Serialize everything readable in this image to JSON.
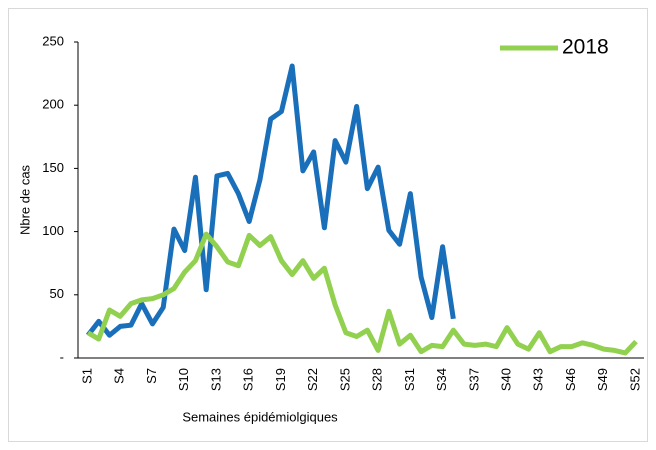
{
  "chart_data": {
    "type": "line",
    "x_label": "Semaines épidémiolgiques",
    "y_label": "Nbre de cas",
    "categories": [
      "S1",
      null,
      null,
      "S4",
      null,
      null,
      "S7",
      null,
      null,
      "S10",
      null,
      null,
      "S13",
      null,
      null,
      "S16",
      null,
      null,
      "S19",
      null,
      null,
      "S22",
      null,
      null,
      "S25",
      null,
      null,
      "S28",
      null,
      null,
      "S31",
      null,
      null,
      "S34",
      null,
      null,
      "S37",
      null,
      null,
      "S40",
      null,
      null,
      "S43",
      null,
      null,
      "S46",
      null,
      null,
      "S49",
      null,
      null,
      "S52"
    ],
    "series": [
      {
        "color": "#1a6fba",
        "values": [
          18,
          29,
          18,
          25,
          26,
          43,
          27,
          40,
          102,
          85,
          143,
          54,
          144,
          146,
          130,
          108,
          141,
          189,
          195,
          231,
          148,
          163,
          103,
          172,
          155,
          199,
          134,
          151,
          101,
          90,
          130,
          64,
          32,
          88,
          31,
          null,
          null,
          null,
          null,
          null,
          null,
          null,
          null,
          null,
          null,
          null,
          null,
          null,
          null,
          null,
          null,
          null
        ]
      },
      {
        "name": "2018",
        "color": "#92d050",
        "values": [
          20,
          15,
          38,
          33,
          43,
          46,
          47,
          50,
          55,
          68,
          77,
          98,
          88,
          76,
          73,
          97,
          89,
          96,
          77,
          66,
          77,
          63,
          71,
          42,
          20,
          17,
          22,
          6,
          37,
          11,
          18,
          5,
          10,
          9,
          22,
          11,
          10,
          11,
          9,
          24,
          11,
          7,
          20,
          5,
          9,
          9,
          12,
          10,
          7,
          6,
          4,
          13
        ]
      }
    ],
    "ylim": [
      0,
      250
    ],
    "yticks": [
      {
        "value": 0,
        "label": "-"
      },
      50,
      100,
      150,
      200,
      250
    ],
    "grid": false,
    "legend": "top-right"
  }
}
